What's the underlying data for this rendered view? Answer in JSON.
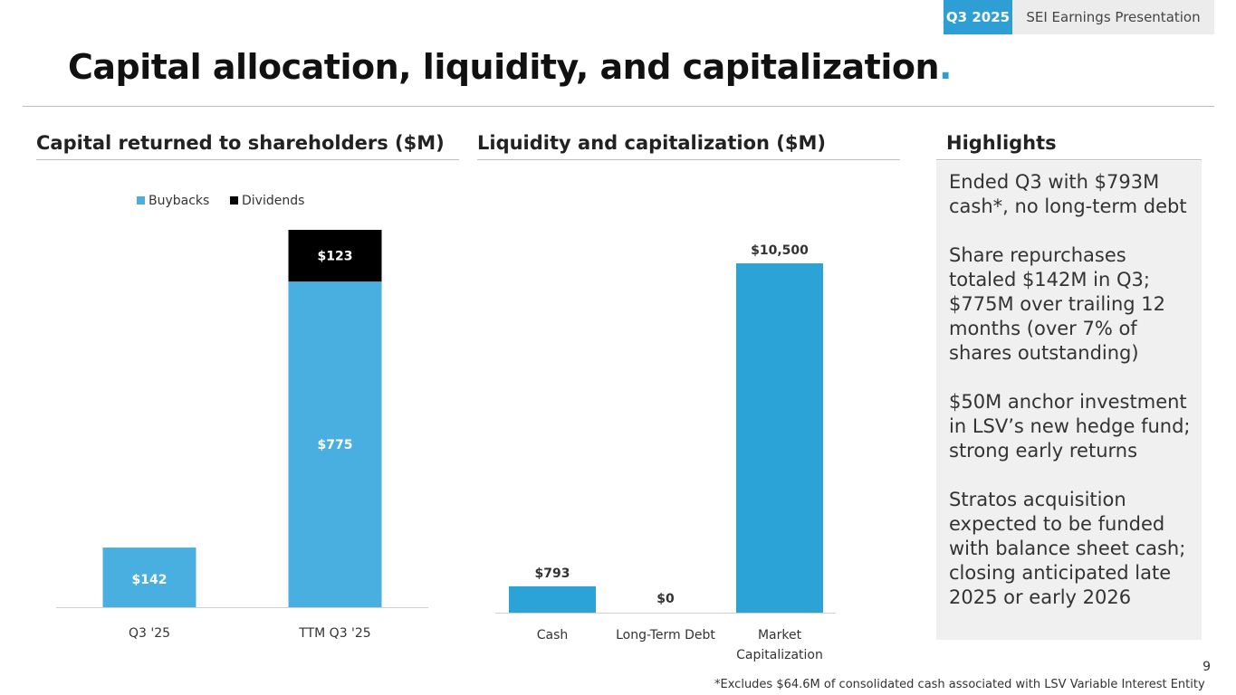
{
  "header": {
    "badge": "Q3 2025",
    "label": "SEI Earnings Presentation"
  },
  "title": {
    "text": "Capital allocation, liquidity, and capitalization",
    "dot": "."
  },
  "sections": {
    "left": "Capital returned to shareholders ($M)",
    "middle": "Liquidity and capitalization ($M)",
    "right": "Highlights"
  },
  "highlights": [
    "Ended Q3 with $793M cash*, no long-term debt",
    "Share repurchases totaled $142M in Q3; $775M over trailing 12 months (over 7% of shares outstanding)",
    "$50M anchor investment in LSV’s new hedge fund; strong early returns",
    "Stratos acquisition expected to be funded with balance sheet cash; closing anticipated late 2025 or early 2026"
  ],
  "page_number": "9",
  "footnote": "*Excludes $64.6M of consolidated cash associated with LSV Variable Interest Entity",
  "colors": {
    "accent": "#2e9fd5",
    "buybacks": "#48afe0",
    "dividends": "#000000",
    "liquidity": "#2ba3d6"
  },
  "chart_data": [
    {
      "type": "bar",
      "stacked": true,
      "title": "Capital returned to shareholders ($M)",
      "categories": [
        "Q3 '25",
        "TTM Q3 '25"
      ],
      "series": [
        {
          "name": "Buybacks",
          "values": [
            142,
            775
          ],
          "labels": [
            "$142",
            "$775"
          ]
        },
        {
          "name": "Dividends",
          "values": [
            0,
            123
          ],
          "labels": [
            "",
            "$123"
          ]
        }
      ],
      "legend": "top",
      "ylim": [
        0,
        898
      ]
    },
    {
      "type": "bar",
      "title": "Liquidity and capitalization ($M)",
      "categories": [
        "Cash",
        "Long-Term Debt",
        "Market Capitalization"
      ],
      "values": [
        793,
        0,
        10500
      ],
      "labels": [
        "$793",
        "$0",
        "$10,500"
      ],
      "ylim": [
        0,
        10500
      ]
    }
  ]
}
